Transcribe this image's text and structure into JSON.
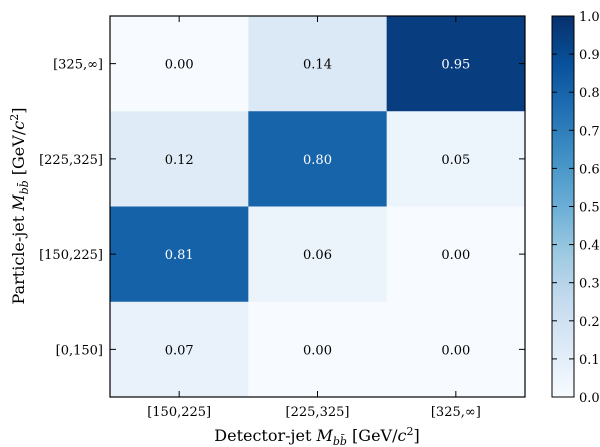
{
  "chart_data": {
    "type": "heatmap",
    "xlabel": "Detector-jet M_{bb̄} [GeV/c²]",
    "ylabel": "Particle-jet M_{bb̄} [GeV/c²]",
    "x_categories": [
      "[150,225]",
      "[225,325]",
      "[325,∞]"
    ],
    "y_categories": [
      "[325,∞]",
      "[225,325]",
      "[150,225]",
      "[0,150]"
    ],
    "values": [
      [
        0.0,
        0.14,
        0.95
      ],
      [
        0.12,
        0.8,
        0.05
      ],
      [
        0.81,
        0.06,
        0.0
      ],
      [
        0.07,
        0.0,
        0.0
      ]
    ],
    "value_labels": [
      [
        "0.00",
        "0.14",
        "0.95"
      ],
      [
        "0.12",
        "0.80",
        "0.05"
      ],
      [
        "0.81",
        "0.06",
        "0.00"
      ],
      [
        "0.07",
        "0.00",
        "0.00"
      ]
    ],
    "colormap": "Blues",
    "colorbar": {
      "range": [
        0.0,
        1.0
      ],
      "ticks": [
        "0.0",
        "0.1",
        "0.2",
        "0.3",
        "0.4",
        "0.5",
        "0.6",
        "0.7",
        "0.8",
        "0.9",
        "1.0"
      ]
    }
  }
}
